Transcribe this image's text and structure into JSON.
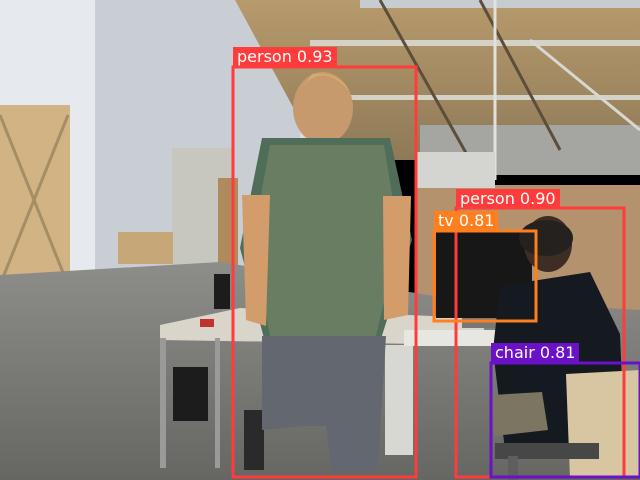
{
  "detections": [
    {
      "label": "person 0.93",
      "class_name": "person",
      "confidence": 0.93,
      "color": "#ff3b3b"
    },
    {
      "label": "person 0.90",
      "class_name": "person",
      "confidence": 0.9,
      "color": "#ff3b3b"
    },
    {
      "label": "tv 0.81",
      "class_name": "tv",
      "confidence": 0.81,
      "color": "#ff7f1e"
    },
    {
      "label": "chair 0.81",
      "class_name": "chair",
      "confidence": 0.81,
      "color": "#6b11c7"
    }
  ]
}
